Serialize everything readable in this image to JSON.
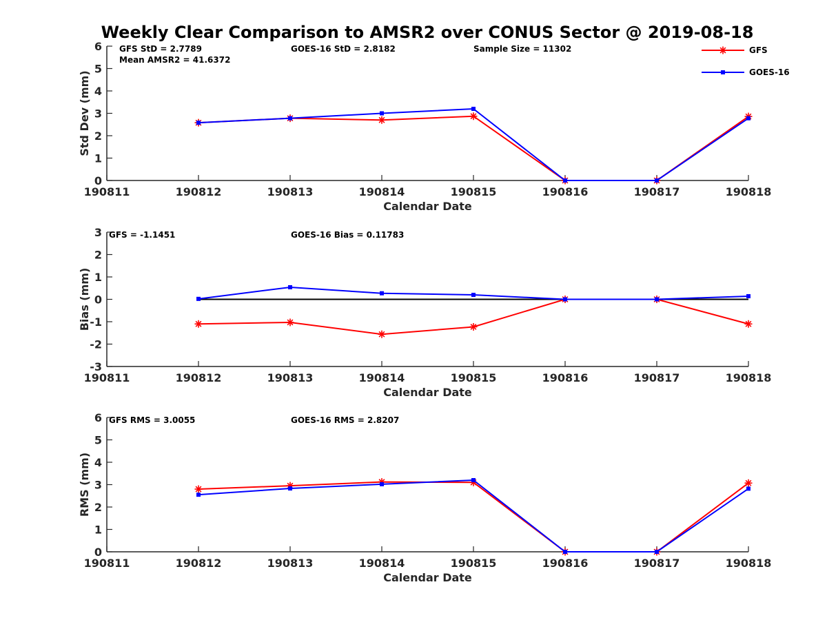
{
  "title": "Weekly Clear Comparison to AMSR2 over CONUS Sector @ 2019-08-18",
  "colors": {
    "GFS": "#ff0000",
    "GOES-16": "#0000ff",
    "zero_line": "#000000"
  },
  "legend": [
    {
      "name": "GFS",
      "marker": "asterisk"
    },
    {
      "name": "GOES-16",
      "marker": "square"
    }
  ],
  "chart_data": [
    {
      "type": "line",
      "xlabel": "Calendar Date",
      "ylabel": "Std Dev (mm)",
      "x_ticks": [
        "190811",
        "190812",
        "190813",
        "190814",
        "190815",
        "190816",
        "190817",
        "190818"
      ],
      "ylim": [
        0,
        6
      ],
      "y_ticks": [
        0,
        1,
        2,
        3,
        4,
        5,
        6
      ],
      "annotations": [
        "GFS StD = 2.7789",
        "GOES-16 StD = 2.8182",
        "Sample Size = 11302",
        "Mean AMSR2 = 41.6372"
      ],
      "series": [
        {
          "name": "GFS",
          "x": [
            "190812",
            "190813",
            "190814",
            "190815",
            "190816",
            "190817",
            "190818"
          ],
          "values": [
            2.58,
            2.78,
            2.7,
            2.87,
            0,
            0,
            2.86
          ]
        },
        {
          "name": "GOES-16",
          "x": [
            "190812",
            "190813",
            "190814",
            "190815",
            "190816",
            "190817",
            "190818"
          ],
          "values": [
            2.58,
            2.78,
            3.0,
            3.2,
            0,
            0,
            2.78
          ]
        }
      ]
    },
    {
      "type": "line",
      "xlabel": "Calendar Date",
      "ylabel": "Bias (mm)",
      "x_ticks": [
        "190811",
        "190812",
        "190813",
        "190814",
        "190815",
        "190816",
        "190817",
        "190818"
      ],
      "ylim": [
        -3,
        3
      ],
      "y_ticks": [
        -3,
        -2,
        -1,
        0,
        1,
        2,
        3
      ],
      "zero_line": true,
      "annotations": [
        "GFS = -1.1451",
        "GOES-16 Bias  = 0.11783"
      ],
      "series": [
        {
          "name": "GFS",
          "x": [
            "190812",
            "190813",
            "190814",
            "190815",
            "190816",
            "190817",
            "190818"
          ],
          "values": [
            -1.1,
            -1.03,
            -1.56,
            -1.23,
            0,
            0,
            -1.1
          ]
        },
        {
          "name": "GOES-16",
          "x": [
            "190812",
            "190813",
            "190814",
            "190815",
            "190816",
            "190817",
            "190818"
          ],
          "values": [
            0.02,
            0.54,
            0.27,
            0.2,
            0,
            0,
            0.14
          ]
        }
      ]
    },
    {
      "type": "line",
      "xlabel": "Calendar Date",
      "ylabel": "RMS (mm)",
      "x_ticks": [
        "190811",
        "190812",
        "190813",
        "190814",
        "190815",
        "190816",
        "190817",
        "190818"
      ],
      "ylim": [
        0,
        6
      ],
      "y_ticks": [
        0,
        1,
        2,
        3,
        4,
        5,
        6
      ],
      "annotations": [
        "GFS RMS = 3.0055",
        "GOES-16 RMS = 2.8207"
      ],
      "series": [
        {
          "name": "GFS",
          "x": [
            "190812",
            "190813",
            "190814",
            "190815",
            "190816",
            "190817",
            "190818"
          ],
          "values": [
            2.8,
            2.95,
            3.12,
            3.1,
            0,
            0,
            3.07
          ]
        },
        {
          "name": "GOES-16",
          "x": [
            "190812",
            "190813",
            "190814",
            "190815",
            "190816",
            "190817",
            "190818"
          ],
          "values": [
            2.55,
            2.83,
            3.02,
            3.2,
            0,
            0,
            2.82
          ]
        }
      ]
    }
  ]
}
